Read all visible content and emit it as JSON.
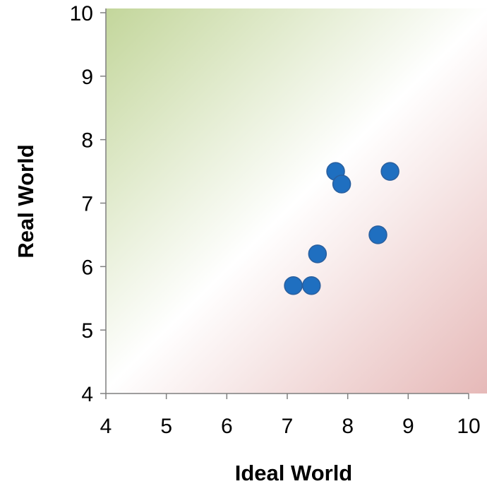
{
  "chart_data": {
    "type": "scatter",
    "xlabel": "Ideal World",
    "ylabel": "Real World",
    "xlim": [
      4,
      10
    ],
    "ylim": [
      4,
      10
    ],
    "xticks": [
      "4",
      "5",
      "6",
      "7",
      "8",
      "9",
      "10"
    ],
    "yticks": [
      "4",
      "5",
      "6",
      "7",
      "8",
      "9",
      "10"
    ],
    "grid": false,
    "legend": "none",
    "background": "diagonal gradient: green above the y = x line, red below",
    "colors": {
      "point_fill": "#1f6fc0",
      "point_stroke": "#2a5f9e",
      "upper_region": "#c3d69b",
      "lower_region": "#e6b9b8",
      "axis": "#7f7f7f"
    },
    "points": [
      {
        "x": 7.1,
        "y": 5.7
      },
      {
        "x": 7.4,
        "y": 5.7
      },
      {
        "x": 7.5,
        "y": 6.2
      },
      {
        "x": 7.8,
        "y": 7.5
      },
      {
        "x": 7.9,
        "y": 7.3
      },
      {
        "x": 8.5,
        "y": 6.5
      },
      {
        "x": 8.7,
        "y": 7.5
      }
    ]
  }
}
